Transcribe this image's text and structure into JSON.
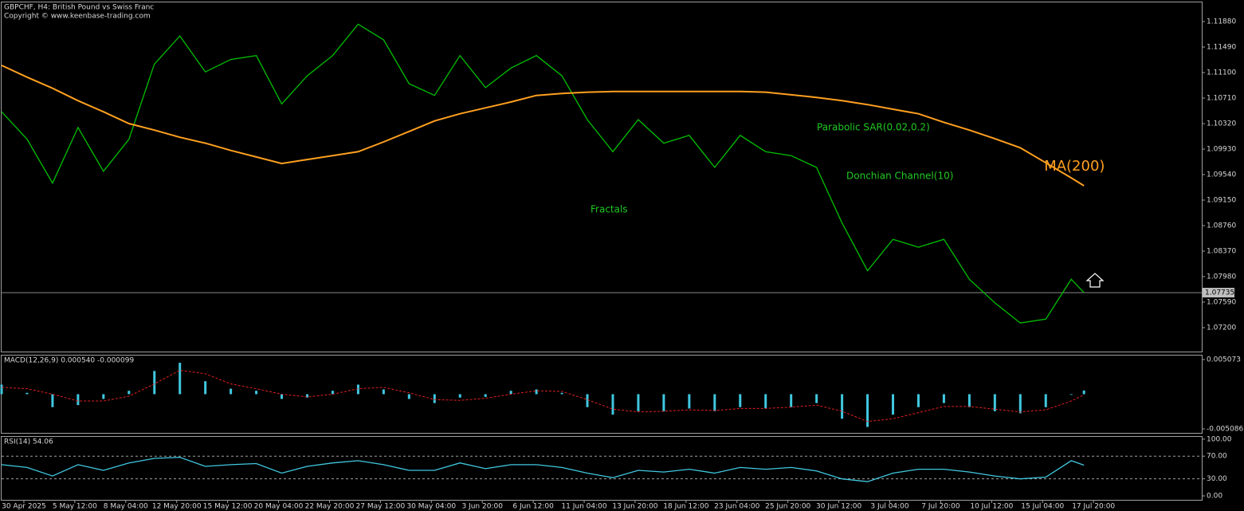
{
  "chart_data": [
    {
      "type": "line",
      "title": "GBPCHF, H4:  British Pound vs Swiss Franc",
      "subtitle": "Copyright © www.keenbase-trading.com",
      "x": [
        0,
        8,
        16,
        24,
        32,
        40,
        48,
        56,
        64,
        72,
        80,
        88,
        96,
        104,
        112,
        120,
        128,
        136,
        144,
        152,
        160,
        168,
        176,
        184,
        192,
        200,
        208,
        216,
        224,
        232,
        240,
        248,
        256,
        264,
        272,
        280,
        288,
        296,
        304,
        312,
        320,
        328,
        336,
        340
      ],
      "series": [
        {
          "color": "#00c000",
          "values": [
            1.105,
            1.1008,
            1.0941,
            1.1026,
            1.0959,
            1.1008,
            1.1123,
            1.1166,
            1.1111,
            1.113,
            1.1136,
            1.1062,
            1.1105,
            1.1136,
            1.1184,
            1.116,
            1.1093,
            1.1075,
            1.1136,
            1.1087,
            1.1117,
            1.1136,
            1.1105,
            1.1038,
            1.0989,
            1.1038,
            1.1002,
            1.1014,
            1.0965,
            1.1014,
            1.0989,
            1.0983,
            1.0965,
            1.088,
            1.0807,
            1.0855,
            1.0843,
            1.0855,
            1.0794,
            1.0758,
            1.0727,
            1.0733,
            1.0794,
            1.07735
          ]
        },
        {
          "name": "MA(200)",
          "color": "#ffa020",
          "values": [
            1.1121,
            1.1103,
            1.1086,
            1.1067,
            1.105,
            1.1032,
            1.1022,
            1.1011,
            1.1002,
            1.0991,
            1.0981,
            1.0971,
            1.0977,
            1.0983,
            1.0989,
            1.1004,
            1.102,
            1.1036,
            1.1047,
            1.1056,
            1.1065,
            1.1075,
            1.1078,
            1.108,
            1.1081,
            1.1081,
            1.1081,
            1.1081,
            1.1081,
            1.1081,
            1.108,
            1.1076,
            1.1072,
            1.1067,
            1.1061,
            1.1054,
            1.1047,
            1.1034,
            1.1022,
            1.1009,
            1.0995,
            1.0972,
            1.0949,
            1.0937
          ]
        }
      ],
      "annotations": [
        "Parabolic SAR(0.02,0.2)",
        "Donchian Channel(10)",
        "Fractals"
      ],
      "last_price": {
        "value": 1.07735,
        "label": "1.07735"
      },
      "xlim": [
        0,
        377
      ],
      "ylim": [
        1.06834,
        1.12173
      ],
      "yticks": [
        {
          "value": 1.1188,
          "label": "1.11880"
        },
        {
          "value": 1.1149,
          "label": "1.11490"
        },
        {
          "value": 1.111,
          "label": "1.11100"
        },
        {
          "value": 1.1071,
          "label": "1.10710"
        },
        {
          "value": 1.1032,
          "label": "1.10320"
        },
        {
          "value": 1.0993,
          "label": "1.09930"
        },
        {
          "value": 1.0954,
          "label": "1.09540"
        },
        {
          "value": 1.0915,
          "label": "1.09150"
        },
        {
          "value": 1.0876,
          "label": "1.08760"
        },
        {
          "value": 1.0837,
          "label": "1.08370"
        },
        {
          "value": 1.0798,
          "label": "1.07980"
        },
        {
          "value": 1.0759,
          "label": "1.07590"
        },
        {
          "value": 1.072,
          "label": "1.07200"
        }
      ]
    },
    {
      "type": "combo",
      "title": "MACD(12,26,9) 0.000540 -0.000099",
      "x": [
        0,
        8,
        16,
        24,
        32,
        40,
        48,
        56,
        64,
        72,
        80,
        88,
        96,
        104,
        112,
        120,
        128,
        136,
        144,
        152,
        160,
        168,
        176,
        184,
        192,
        200,
        208,
        216,
        224,
        232,
        240,
        248,
        256,
        264,
        272,
        280,
        288,
        296,
        304,
        312,
        320,
        328,
        336,
        340
      ],
      "series": [
        {
          "mark": "bar",
          "color": "#40c8e0",
          "values": [
            0.0014,
            0.0002,
            -0.0019,
            -0.0016,
            -0.0007,
            0.0005,
            0.0034,
            0.0046,
            0.0019,
            0.0008,
            0.0005,
            -0.0007,
            -0.0005,
            0.0005,
            0.0014,
            0.0007,
            -0.0007,
            -0.0013,
            -0.0005,
            -0.0004,
            0.0005,
            0.0007,
            0.0002,
            -0.0019,
            -0.003,
            -0.0025,
            -0.0025,
            -0.0021,
            -0.0025,
            -0.0019,
            -0.0021,
            -0.0019,
            -0.0013,
            -0.0036,
            -0.0048,
            -0.003,
            -0.0019,
            -0.0013,
            -0.0019,
            -0.0025,
            -0.0028,
            -0.0019,
            -0.0001,
            0.00054
          ]
        },
        {
          "mark": "line",
          "color": "#e02020",
          "values": [
            0.001,
            0.0008,
            0.0,
            -0.001,
            -0.001,
            -0.0003,
            0.0015,
            0.0035,
            0.003,
            0.0015,
            0.0008,
            0.0,
            -0.0004,
            0.0,
            0.0008,
            0.001,
            0.0002,
            -0.0008,
            -0.0009,
            -0.0006,
            0.0,
            0.0005,
            0.0004,
            -0.0008,
            -0.0022,
            -0.0026,
            -0.0025,
            -0.0023,
            -0.0024,
            -0.0021,
            -0.0021,
            -0.0019,
            -0.0016,
            -0.0025,
            -0.004,
            -0.0036,
            -0.0027,
            -0.0018,
            -0.0018,
            -0.0022,
            -0.0026,
            -0.0023,
            -0.001,
            -9.9e-05
          ]
        }
      ],
      "xlim": [
        0,
        377
      ],
      "ylim": [
        -0.00567,
        0.00566
      ],
      "yticks": [
        {
          "value": 0.005073,
          "label": "0.005073"
        },
        {
          "value": -0.005086,
          "label": "-0.005086"
        }
      ]
    },
    {
      "type": "line",
      "title": "RSI(14) 54.06",
      "x": [
        0,
        8,
        16,
        24,
        32,
        40,
        48,
        56,
        64,
        72,
        80,
        88,
        96,
        104,
        112,
        120,
        128,
        136,
        144,
        152,
        160,
        168,
        176,
        184,
        192,
        200,
        208,
        216,
        224,
        232,
        240,
        248,
        256,
        264,
        272,
        280,
        288,
        296,
        304,
        312,
        320,
        328,
        336,
        340
      ],
      "series": [
        {
          "color": "#40c8e0",
          "values": [
            55,
            50,
            35,
            55,
            45,
            58,
            66,
            68,
            52,
            55,
            57,
            40,
            52,
            58,
            62,
            55,
            45,
            45,
            58,
            48,
            55,
            55,
            50,
            40,
            32,
            45,
            42,
            47,
            40,
            50,
            47,
            50,
            44,
            30,
            25,
            40,
            47,
            47,
            42,
            35,
            30,
            33,
            62,
            54.06
          ]
        }
      ],
      "xlim": [
        0,
        377
      ],
      "ylim": [
        -7,
        104
      ],
      "yticks": [
        {
          "value": 100,
          "label": "100.00"
        },
        {
          "value": 70,
          "label": "70.00"
        },
        {
          "value": 30,
          "label": "30.00"
        },
        {
          "value": 0,
          "label": "0.00"
        }
      ],
      "xticks": [
        {
          "value": 7,
          "label": "30 Apr 2025"
        },
        {
          "value": 23,
          "label": "5 May 12:00"
        },
        {
          "value": 39,
          "label": "8 May 04:00"
        },
        {
          "value": 55,
          "label": "12 May 20:00"
        },
        {
          "value": 71,
          "label": "15 May 12:00"
        },
        {
          "value": 87,
          "label": "20 May 04:00"
        },
        {
          "value": 103,
          "label": "22 May 20:00"
        },
        {
          "value": 119,
          "label": "27 May 12:00"
        },
        {
          "value": 135,
          "label": "30 May 04:00"
        },
        {
          "value": 151,
          "label": "3 Jun 20:00"
        },
        {
          "value": 167,
          "label": "6 Jun 12:00"
        },
        {
          "value": 183,
          "label": "11 Jun 04:00"
        },
        {
          "value": 199,
          "label": "13 Jun 20:00"
        },
        {
          "value": 215,
          "label": "18 Jun 12:00"
        },
        {
          "value": 231,
          "label": "23 Jun 04:00"
        },
        {
          "value": 247,
          "label": "25 Jun 20:00"
        },
        {
          "value": 263,
          "label": "30 Jun 12:00"
        },
        {
          "value": 279,
          "label": "3 Jul 04:00"
        },
        {
          "value": 295,
          "label": "7 Jul 20:00"
        },
        {
          "value": 311,
          "label": "10 Jul 12:00"
        },
        {
          "value": 327,
          "label": "15 Jul 04:00"
        },
        {
          "value": 343,
          "label": "17 Jul 20:00"
        }
      ]
    }
  ]
}
